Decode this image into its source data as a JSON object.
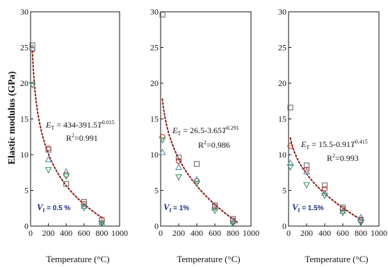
{
  "ylabel": "Elastic modulus (GPa)",
  "chart_data": [
    {
      "type": "scatter",
      "xlabel": "Temperature (°C)",
      "xlim": [
        0,
        1000
      ],
      "ylim": [
        0,
        30
      ],
      "xticks": [
        "0",
        "200",
        "400",
        "600",
        "800",
        "1000"
      ],
      "yticks": [
        "0",
        "5",
        "10",
        "15",
        "20",
        "25",
        "30"
      ],
      "fit": {
        "a": 434,
        "b": 391.5,
        "c": 0.015,
        "color": "#8b1a1a",
        "x_start": 20,
        "x_end": 800
      },
      "equation": {
        "lhs_main": "E",
        "lhs_sub": "T",
        "rhs": " = 434-391.5",
        "var": "T",
        "exp": "0.015"
      },
      "r2": {
        "base": "R",
        "exp": "2",
        "value": "=0.991"
      },
      "vf": {
        "main": "V",
        "sub": "f",
        "value": " = 0.5 %"
      },
      "series": [
        {
          "marker": "square",
          "color": "#6b6b6b",
          "x": [
            20,
            200,
            400,
            600,
            800
          ],
          "y": [
            25.3,
            10.7,
            5.9,
            3.4,
            0.8
          ]
        },
        {
          "marker": "circle",
          "color": "#c0392b",
          "x": [
            20,
            200,
            400,
            600,
            800
          ],
          "y": [
            24.7,
            10.9,
            7.2,
            3.1,
            0.9
          ]
        },
        {
          "marker": "triangle",
          "color": "#5a8fa8",
          "x": [
            20,
            200,
            400,
            600,
            800
          ],
          "y": [
            24.9,
            9.3,
            7.6,
            2.8,
            0.5
          ]
        },
        {
          "marker": "triangle-down",
          "color": "#3f8f6a",
          "x": [
            20,
            200,
            400,
            600,
            800
          ],
          "y": [
            19.8,
            7.9,
            7.0,
            2.6,
            0.4
          ]
        }
      ]
    },
    {
      "type": "scatter",
      "xlabel": "Temperature (°C)",
      "xlim": [
        0,
        1000
      ],
      "ylim": [
        0,
        30
      ],
      "xticks": [
        "0",
        "200",
        "400",
        "600",
        "800",
        "1000"
      ],
      "yticks": [
        "0",
        "5",
        "10",
        "15",
        "20",
        "25",
        "30"
      ],
      "fit": {
        "a": 26.5,
        "b": 3.65,
        "c": 0.291,
        "color": "#8b1a1a",
        "x_start": 20,
        "x_end": 850
      },
      "equation": {
        "lhs_main": "E",
        "lhs_sub": "T",
        "rhs": " = 26.5-3.65",
        "var": "T",
        "exp": "0.291"
      },
      "r2": {
        "base": "R",
        "exp": "2",
        "value": "=0.986"
      },
      "vf": {
        "main": "V",
        "sub": "f",
        "value": " = 1%"
      },
      "series": [
        {
          "marker": "square",
          "color": "#6b6b6b",
          "x": [
            20,
            200,
            400,
            600,
            800
          ],
          "y": [
            29.6,
            9.6,
            8.7,
            2.9,
            1.0
          ]
        },
        {
          "marker": "circle",
          "color": "#c0392b",
          "x": [
            20,
            200,
            400,
            600,
            800
          ],
          "y": [
            12.5,
            9.1,
            6.3,
            2.7,
            0.8
          ]
        },
        {
          "marker": "triangle",
          "color": "#5a8fa8",
          "x": [
            20,
            200,
            400,
            600,
            800
          ],
          "y": [
            10.3,
            8.2,
            6.5,
            2.5,
            0.6
          ]
        },
        {
          "marker": "triangle-down",
          "color": "#3f8f6a",
          "x": [
            20,
            200,
            400,
            600,
            800
          ],
          "y": [
            12.1,
            6.9,
            6.0,
            2.2,
            0.4
          ]
        }
      ]
    },
    {
      "type": "scatter",
      "xlabel": "Temperature (°C)",
      "xlim": [
        0,
        1000
      ],
      "ylim": [
        0,
        30
      ],
      "xticks": [
        "0",
        "200",
        "400",
        "600",
        "800",
        "1000"
      ],
      "yticks": [
        "0",
        "5",
        "10",
        "15",
        "20",
        "25",
        "30"
      ],
      "fit": {
        "a": 15.5,
        "b": 0.91,
        "c": 0.415,
        "color": "#8b1a1a",
        "x_start": 20,
        "x_end": 830
      },
      "equation": {
        "lhs_main": "E",
        "lhs_sub": "T",
        "rhs": " = 15.5-0.91",
        "var": "T",
        "exp": "0.415"
      },
      "r2": {
        "base": "R",
        "exp": "2",
        "value": "=0.993"
      },
      "vf": {
        "main": "V",
        "sub": "f",
        "value": " = 1.5%"
      },
      "series": [
        {
          "marker": "square",
          "color": "#6b6b6b",
          "x": [
            20,
            200,
            400,
            600,
            800
          ],
          "y": [
            16.6,
            8.5,
            5.7,
            2.6,
            0.9
          ]
        },
        {
          "marker": "circle",
          "color": "#c0392b",
          "x": [
            20,
            200,
            400,
            600,
            800
          ],
          "y": [
            11.2,
            7.9,
            5.2,
            2.4,
            0.8
          ]
        },
        {
          "marker": "triangle",
          "color": "#5a8fa8",
          "x": [
            20,
            200,
            400,
            600,
            800
          ],
          "y": [
            8.8,
            7.6,
            4.6,
            2.1,
            1.2
          ]
        },
        {
          "marker": "triangle-down",
          "color": "#3f8f6a",
          "x": [
            20,
            200,
            400,
            600,
            800
          ],
          "y": [
            8.3,
            5.8,
            4.3,
            1.9,
            0.5
          ]
        }
      ]
    }
  ]
}
